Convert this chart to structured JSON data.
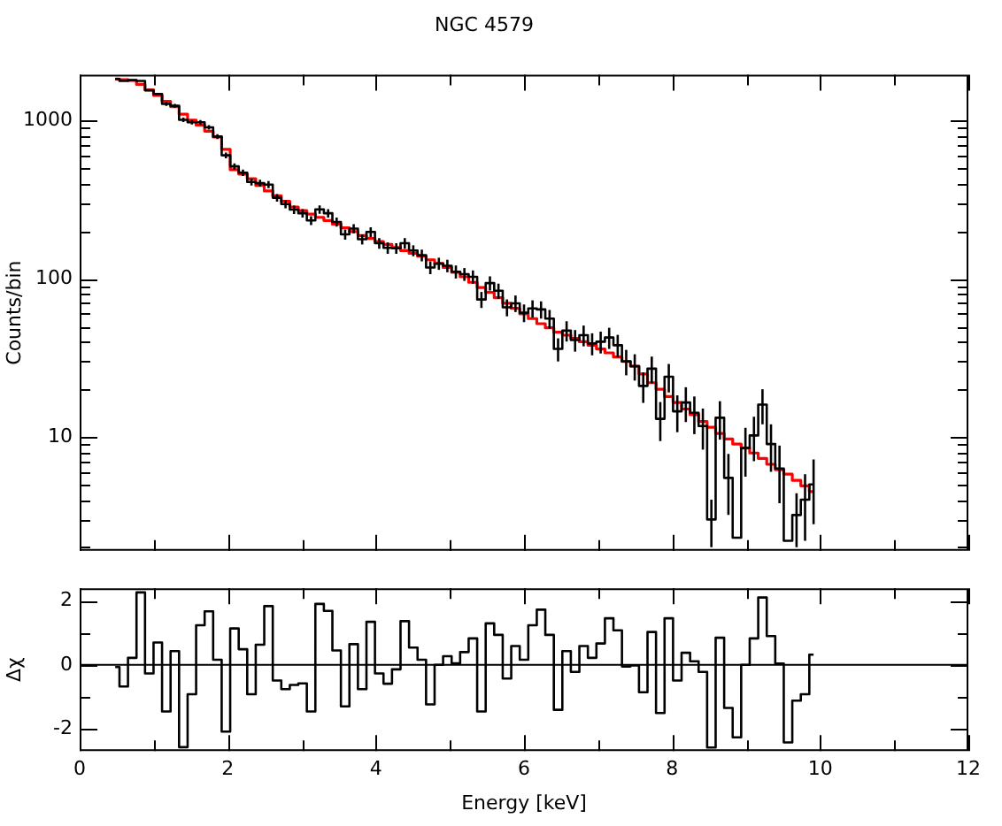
{
  "chart_data": [
    {
      "type": "step",
      "title": "NGC 4579",
      "ylabel": "Counts/bin",
      "log": true,
      "tick_labels": "y",
      "xlim": [
        0,
        12
      ],
      "ylim": [
        1.9,
        1960
      ],
      "xticks": [
        0,
        {
          "value": 1,
          "label": null
        },
        2,
        {
          "value": 3,
          "label": null
        },
        4,
        {
          "value": 5,
          "label": null
        },
        6,
        {
          "value": 7,
          "label": null
        },
        8,
        {
          "value": 9,
          "label": null
        },
        10,
        {
          "value": 11,
          "label": null
        },
        12
      ],
      "yticks": [
        {
          "value": 2,
          "label": null
        },
        {
          "value": 3,
          "label": null
        },
        {
          "value": 4,
          "label": null
        },
        {
          "value": 5,
          "label": null
        },
        {
          "value": 6,
          "label": null
        },
        {
          "value": 7,
          "label": null
        },
        {
          "value": 8,
          "label": null
        },
        {
          "value": 9,
          "label": null
        },
        10,
        {
          "value": 20,
          "label": null
        },
        {
          "value": 30,
          "label": null
        },
        {
          "value": 40,
          "label": null
        },
        {
          "value": 50,
          "label": null
        },
        {
          "value": 60,
          "label": null
        },
        {
          "value": 70,
          "label": null
        },
        {
          "value": 80,
          "label": null
        },
        {
          "value": 90,
          "label": null
        },
        100,
        {
          "value": 200,
          "label": null
        },
        {
          "value": 300,
          "label": null
        },
        {
          "value": 400,
          "label": null
        },
        {
          "value": 500,
          "label": null
        },
        {
          "value": 600,
          "label": null
        },
        {
          "value": 700,
          "label": null
        },
        {
          "value": 800,
          "label": null
        },
        {
          "value": 900,
          "label": null
        },
        1000
      ],
      "x": [
        0.48,
        0.595,
        0.71,
        0.825,
        0.94,
        1.055,
        1.17,
        1.285,
        1.4,
        1.515,
        1.63,
        1.745,
        1.86,
        1.975,
        2.09,
        2.205,
        2.32,
        2.435,
        2.55,
        2.665,
        2.78,
        2.895,
        3.01,
        3.125,
        3.24,
        3.355,
        3.47,
        3.585,
        3.7,
        3.815,
        3.93,
        4.045,
        4.16,
        4.275,
        4.39,
        4.505,
        4.62,
        4.735,
        4.85,
        4.965,
        5.08,
        5.195,
        5.31,
        5.425,
        5.54,
        5.655,
        5.77,
        5.885,
        6.0,
        6.115,
        6.23,
        6.345,
        6.46,
        6.575,
        6.69,
        6.805,
        6.92,
        7.035,
        7.15,
        7.265,
        7.38,
        7.495,
        7.61,
        7.725,
        7.84,
        7.955,
        8.07,
        8.185,
        8.3,
        8.415,
        8.53,
        8.645,
        8.76,
        8.875,
        8.99,
        9.105,
        9.22,
        9.335,
        9.45,
        9.565,
        9.68,
        9.795,
        9.91
      ],
      "series": [
        {
          "type": "step",
          "color": "#000000",
          "values": [
            1840,
            1790,
            1810,
            1790,
            1560,
            1480,
            1280,
            1245,
            1015,
            980,
            980,
            910,
            795,
            605,
            515,
            470,
            410,
            403,
            395,
            326,
            297,
            274,
            260,
            234,
            275,
            260,
            229,
            191,
            208,
            178,
            198,
            168,
            157,
            156,
            168,
            151,
            141,
            118,
            125,
            121,
            111,
            107,
            103,
            74,
            94,
            84,
            66,
            70,
            61,
            65,
            64,
            56,
            36,
            47,
            41,
            44,
            39,
            40,
            42.5,
            38,
            30,
            28,
            21,
            27,
            13,
            24,
            14.5,
            16.5,
            14.2,
            11.7,
            3,
            13.2,
            5.5,
            2.3,
            8.5,
            10.2,
            16,
            9,
            6.3,
            2.2,
            3.2,
            4,
            5
          ],
          "errors": [
            null,
            null,
            null,
            null,
            null,
            null,
            36,
            35,
            32,
            31,
            31,
            30,
            28,
            25,
            23,
            22,
            20,
            20,
            20,
            18,
            17,
            17,
            16,
            15,
            17,
            16,
            15,
            14,
            14,
            13,
            14,
            13,
            13,
            12,
            13,
            12,
            12,
            11,
            11,
            11,
            10.5,
            10,
            10,
            8.6,
            9.7,
            9.2,
            8.1,
            8.4,
            7.8,
            8.1,
            8,
            7.5,
            6,
            6.9,
            6.4,
            6.6,
            6.2,
            6.3,
            6.5,
            6.2,
            5.5,
            5.3,
            4.6,
            5.2,
            3.6,
            4.9,
            3.8,
            4.1,
            3.8,
            3.4,
            1,
            3.6,
            2.3,
            null,
            2.9,
            3.2,
            4,
            3,
            2.5,
            null,
            1.2,
            1.8,
            2.2
          ]
        },
        {
          "type": "step",
          "color": "#ff0000",
          "values": [
            1840,
            1820,
            1800,
            1700,
            1570,
            1450,
            1330,
            1230,
            1100,
            1010,
            940,
            860,
            790,
            660,
            490,
            460,
            430,
            390,
            360,
            335,
            310,
            285,
            270,
            257,
            245,
            234,
            222,
            210,
            199,
            188,
            180,
            172,
            165,
            158,
            151,
            145,
            139,
            132,
            125,
            118,
            110,
            103,
            95,
            88,
            82,
            76,
            70,
            65,
            60,
            56,
            52,
            49,
            46,
            44,
            42,
            40,
            38,
            36,
            34,
            32,
            30,
            28,
            25,
            22,
            20,
            18,
            16.5,
            15,
            13.8,
            12.5,
            11.5,
            10.5,
            9.7,
            9,
            8.5,
            7.9,
            7.3,
            6.7,
            6.2,
            5.8,
            5.3,
            4.9,
            4.5
          ]
        }
      ]
    },
    {
      "type": "step",
      "xlabel": "Energy [keV]",
      "ylabel": "Δχ",
      "xlim": [
        0,
        12
      ],
      "ylim": [
        -2.7,
        2.4
      ],
      "xticks": [
        0,
        {
          "value": 1,
          "label": null
        },
        2,
        {
          "value": 3,
          "label": null
        },
        4,
        {
          "value": 5,
          "label": null
        },
        6,
        {
          "value": 7,
          "label": null
        },
        8,
        {
          "value": 9,
          "label": null
        },
        10,
        {
          "value": 11,
          "label": null
        },
        12
      ],
      "yticks": [
        -2,
        {
          "value": -1,
          "label": null
        },
        0,
        {
          "value": 1,
          "label": null
        },
        2
      ],
      "ref_lines": [
        {
          "axis": "y",
          "value": 0
        }
      ],
      "x": [
        0.48,
        0.595,
        0.71,
        0.825,
        0.94,
        1.055,
        1.17,
        1.285,
        1.4,
        1.515,
        1.63,
        1.745,
        1.86,
        1.975,
        2.09,
        2.205,
        2.32,
        2.435,
        2.55,
        2.665,
        2.78,
        2.895,
        3.01,
        3.125,
        3.24,
        3.355,
        3.47,
        3.585,
        3.7,
        3.815,
        3.93,
        4.045,
        4.16,
        4.275,
        4.39,
        4.505,
        4.62,
        4.735,
        4.85,
        4.965,
        5.08,
        5.195,
        5.31,
        5.425,
        5.54,
        5.655,
        5.77,
        5.885,
        6.0,
        6.115,
        6.23,
        6.345,
        6.46,
        6.575,
        6.69,
        6.805,
        6.92,
        7.035,
        7.15,
        7.265,
        7.38,
        7.495,
        7.61,
        7.725,
        7.84,
        7.955,
        8.07,
        8.185,
        8.3,
        8.415,
        8.53,
        8.645,
        8.76,
        8.875,
        8.99,
        9.105,
        9.22,
        9.335,
        9.45,
        9.565,
        9.68,
        9.795,
        9.91
      ],
      "series": [
        {
          "color": "#000000",
          "values": [
            -0.07,
            -0.68,
            0.22,
            2.27,
            -0.27,
            0.7,
            -1.46,
            0.43,
            -2.58,
            -0.92,
            1.24,
            1.68,
            0.16,
            -2.09,
            1.14,
            0.49,
            -0.92,
            0.63,
            1.84,
            -0.49,
            -0.76,
            -0.63,
            -0.58,
            -1.46,
            1.91,
            1.69,
            0.45,
            -1.3,
            0.65,
            -0.76,
            1.35,
            -0.27,
            -0.59,
            -0.14,
            1.37,
            0.54,
            0.16,
            -1.24,
            0,
            0.27,
            0.05,
            0.4,
            0.83,
            -1.46,
            1.3,
            0.94,
            -0.43,
            0.59,
            0.16,
            1.24,
            1.73,
            0.94,
            -1.41,
            0.43,
            -0.22,
            0.59,
            0.22,
            0.67,
            1.46,
            1.08,
            -0.05,
            -0.02,
            -0.86,
            1.03,
            -1.51,
            1.46,
            -0.49,
            0.38,
            0.11,
            -0.22,
            -2.59,
            0.85,
            -1.35,
            -2.27,
            0,
            0.83,
            2.11,
            0.9,
            0.04,
            -2.43,
            -1.12,
            -0.92,
            0.32
          ]
        }
      ]
    }
  ]
}
